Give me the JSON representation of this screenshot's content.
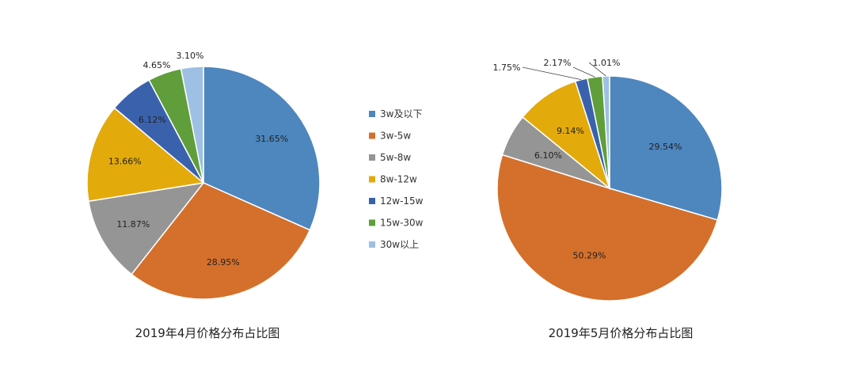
{
  "legend": [
    {
      "label": "3w及以下",
      "color": "#4E86BE"
    },
    {
      "label": "3w-5w",
      "color": "#D4702B"
    },
    {
      "label": "5w-8w",
      "color": "#959595"
    },
    {
      "label": "8w-12w",
      "color": "#E3AA0C"
    },
    {
      "label": "12w-15w",
      "color": "#3A62AC"
    },
    {
      "label": "15w-30w",
      "color": "#5F9E3B"
    },
    {
      "label": "30w以上",
      "color": "#9DC0E4"
    }
  ],
  "chart_data": [
    {
      "type": "pie",
      "title": "2019年4月价格分布占比图",
      "categories": [
        "3w及以下",
        "3w-5w",
        "5w-8w",
        "8w-12w",
        "12w-15w",
        "15w-30w",
        "30w以上"
      ],
      "values": [
        31.65,
        28.95,
        11.87,
        13.66,
        6.12,
        4.65,
        3.1
      ],
      "data_labels": [
        "31.65%",
        "28.95%",
        "11.87%",
        "13.66%",
        "6.12%",
        "4.65%",
        "3.10%"
      ],
      "start_angle_deg": 0,
      "direction": "clockwise"
    },
    {
      "type": "pie",
      "title": "2019年5月价格分布占比图",
      "categories": [
        "3w及以下",
        "3w-5w",
        "5w-8w",
        "8w-12w",
        "12w-15w",
        "15w-30w",
        "30w以上"
      ],
      "values": [
        29.54,
        50.29,
        6.1,
        9.14,
        1.75,
        2.17,
        1.01
      ],
      "data_labels": [
        "29.54%",
        "50.29%",
        "6.10%",
        "9.14%",
        "1.75%",
        "2.17%",
        "1.01%"
      ],
      "start_angle_deg": 0,
      "direction": "clockwise"
    }
  ]
}
